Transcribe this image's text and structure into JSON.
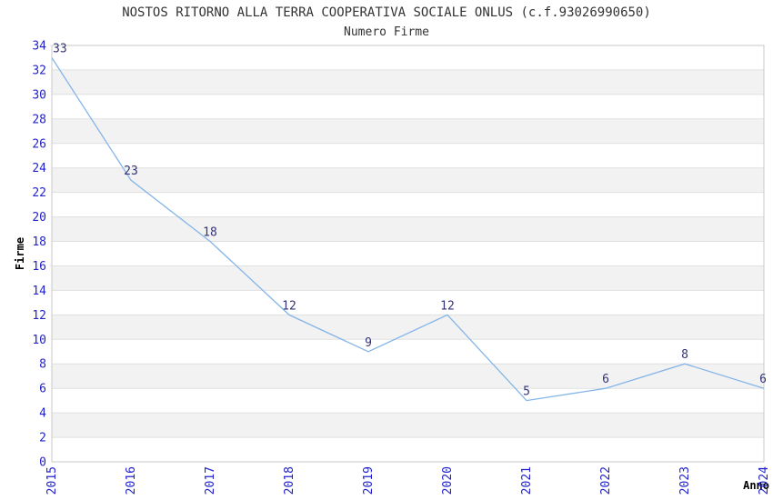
{
  "header": {
    "title": "NOSTOS RITORNO ALLA TERRA COOPERATIVA SOCIALE ONLUS (c.f.93026990650)",
    "subtitle": "Numero Firme"
  },
  "chart_data": {
    "type": "line",
    "title": "NOSTOS RITORNO ALLA TERRA COOPERATIVA SOCIALE ONLUS (c.f.93026990650)",
    "subtitle": "Numero Firme",
    "xlabel": "Anno",
    "ylabel": "Firme",
    "x": [
      2015,
      2016,
      2017,
      2018,
      2019,
      2020,
      2021,
      2022,
      2023,
      2024
    ],
    "values": [
      33,
      23,
      18,
      12,
      9,
      12,
      5,
      6,
      8,
      6
    ],
    "ylim": [
      0,
      34
    ],
    "ytick_step": 2,
    "grid": "horizontal-only",
    "band_fill": "alternating",
    "legend": "none",
    "markers": "none",
    "data_labels_shown": true
  },
  "colors": {
    "line": "#85b5e8",
    "tick_label": "#2222cc",
    "data_label": "#333377",
    "band": "#f2f2f2",
    "gridline": "#e0e0e0",
    "plot_border": "#c9c9c9",
    "title_text": "#333333",
    "axis_label_text": "#000000",
    "background": "#ffffff"
  }
}
